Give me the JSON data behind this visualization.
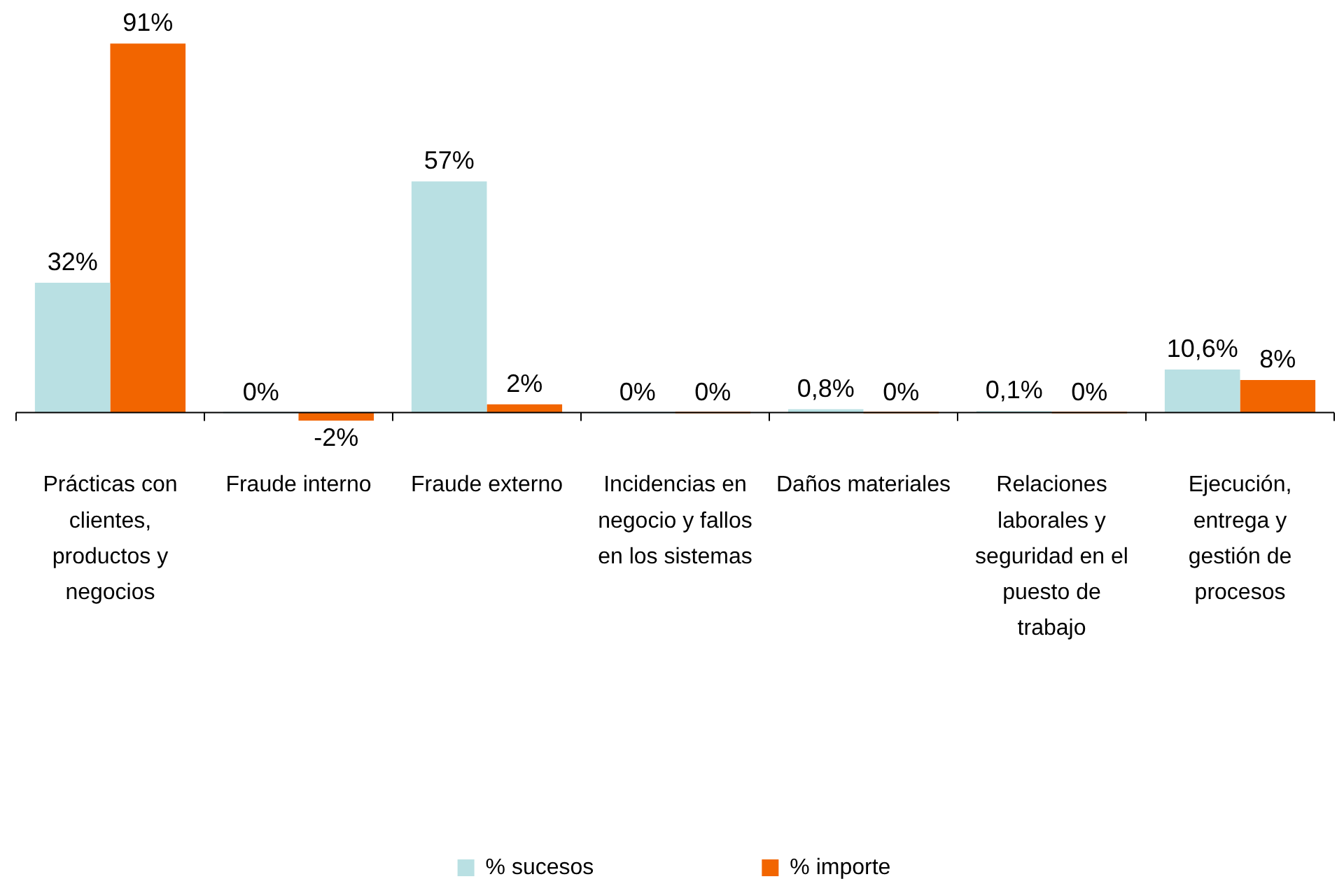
{
  "chart_data": {
    "type": "bar",
    "categories": [
      "Prácticas con clientes, productos y negocios",
      "Fraude interno",
      "Fraude externo",
      "Incidencias en negocio y fallos en los sistemas",
      "Daños materiales",
      "Relaciones laborales y seguridad en el puesto de trabajo",
      "Ejecución, entrega y gestión de procesos"
    ],
    "series": [
      {
        "name": "% sucesos",
        "color": "#b9e0e3",
        "values": [
          32,
          0,
          57,
          0,
          0.8,
          0.1,
          10.6
        ],
        "value_labels": [
          "32%",
          "0%",
          "57%",
          "0%",
          "0,8%",
          "0,1%",
          "10,6%"
        ]
      },
      {
        "name": "% importe",
        "color": "#f26500",
        "values": [
          91,
          -2,
          2,
          0,
          0,
          0,
          8
        ],
        "value_labels": [
          "91%",
          "-2%",
          "2%",
          "0%",
          "0%",
          "0%",
          "8%"
        ]
      }
    ],
    "legend": "bottom",
    "grid": false
  }
}
